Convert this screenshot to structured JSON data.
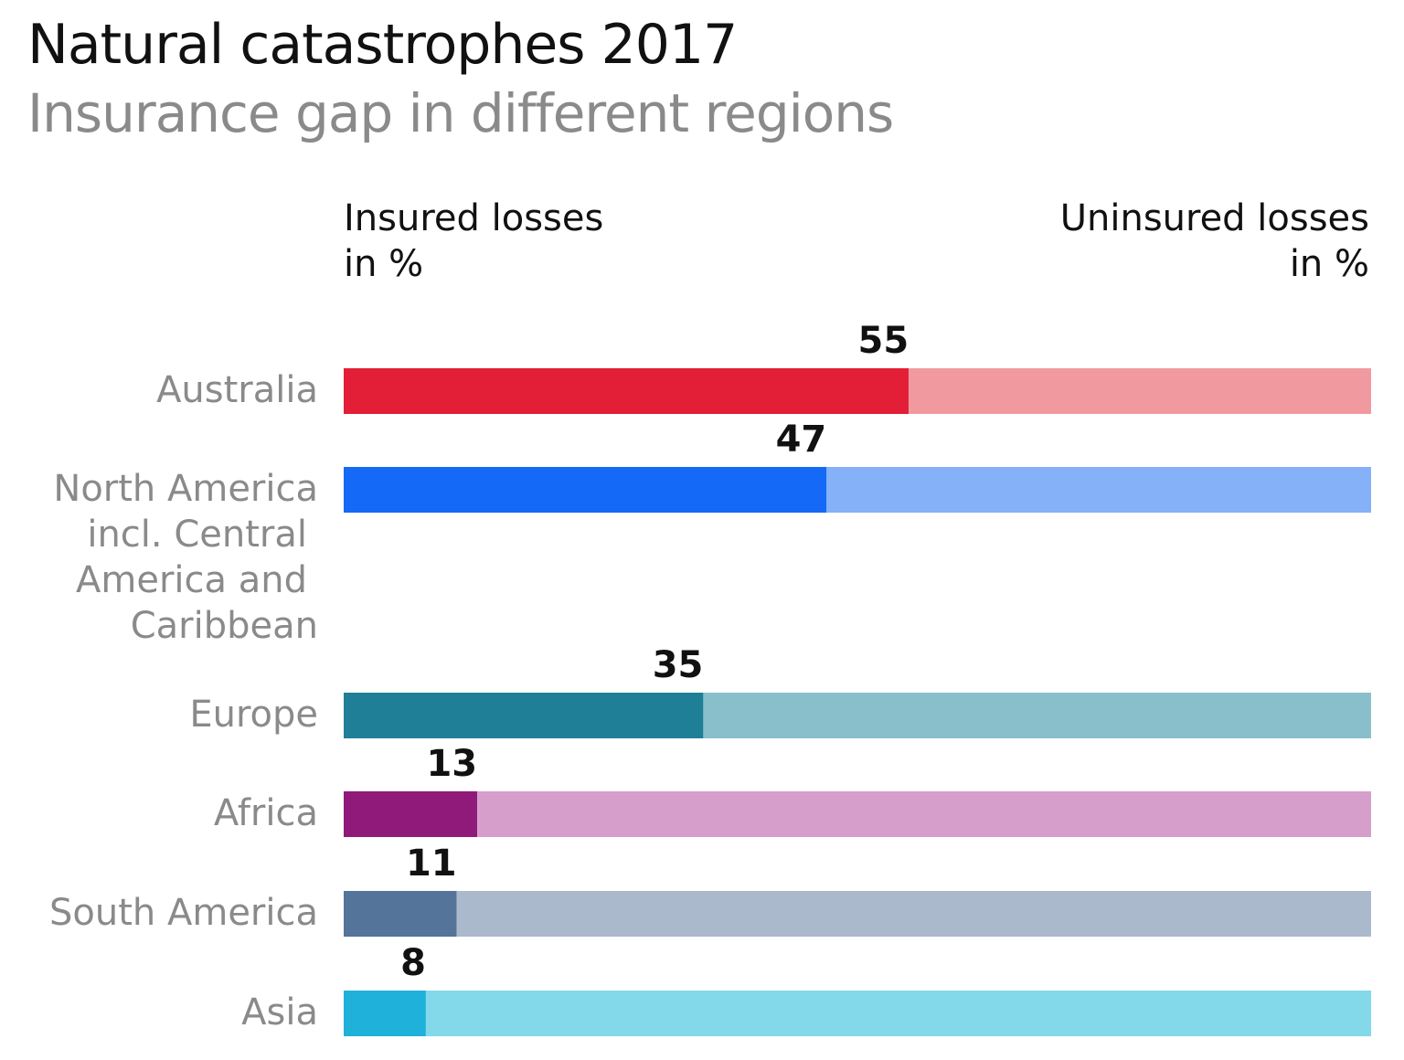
{
  "title": "Natural catastrophes 2017",
  "subtitle": "Insurance gap in different regions",
  "legend": {
    "insured_line1": "Insured losses",
    "insured_line2": "in %",
    "uninsured_line1": "Uninsured losses",
    "uninsured_line2": "in %"
  },
  "chart_data": {
    "type": "bar",
    "orientation": "horizontal",
    "stacked": true,
    "title": "Natural catastrophes 2017",
    "subtitle": "Insurance gap in different regions",
    "xlim": [
      0,
      100
    ],
    "grid": false,
    "categories": [
      [
        "Australia"
      ],
      [
        "North America",
        "incl. Central",
        "America and",
        "Caribbean"
      ],
      [
        "Europe"
      ],
      [
        "Africa"
      ],
      [
        "South America"
      ],
      [
        "Asia"
      ]
    ],
    "series": [
      {
        "name": "Insured losses in %",
        "values": [
          55,
          47,
          35,
          13,
          11,
          8
        ],
        "colors": [
          "#e21f36",
          "#1569f7",
          "#1e7f96",
          "#8f1a7a",
          "#557499",
          "#1fb1d9"
        ]
      },
      {
        "name": "Uninsured losses in %",
        "values": [
          45,
          53,
          65,
          87,
          89,
          92
        ],
        "colors": [
          "#f09aa0",
          "#84b1f8",
          "#89bfca",
          "#d59ecb",
          "#aab9cc",
          "#83d8e9"
        ]
      }
    ],
    "data_labels": [
      "55",
      "47",
      "35",
      "13",
      "11",
      "8"
    ]
  }
}
